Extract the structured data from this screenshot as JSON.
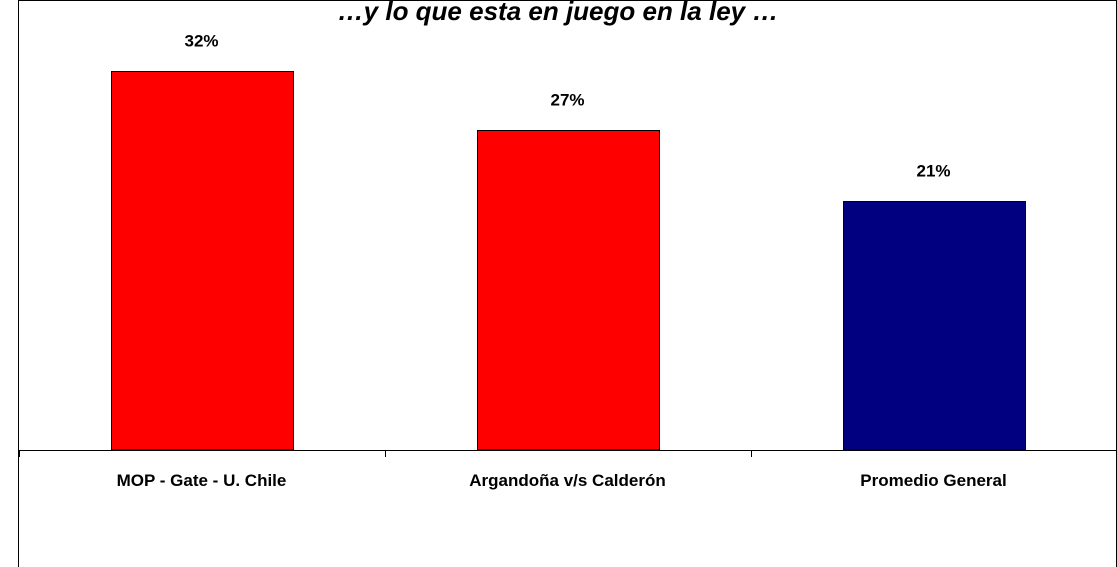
{
  "chart_data": {
    "type": "bar",
    "title": "…y lo que esta en juego en la ley …",
    "categories": [
      "MOP - Gate - U. Chile",
      "Argandoña v/s Calderón",
      "Promedio General"
    ],
    "values": [
      32,
      27,
      21
    ],
    "value_labels": [
      "32%",
      "27%",
      "21%"
    ],
    "bar_colors": [
      "#ff0000",
      "#ff0000",
      "#000080"
    ],
    "ylim": [
      0,
      32
    ],
    "grid": false,
    "legend": "none",
    "xlabel": "",
    "ylabel": ""
  }
}
